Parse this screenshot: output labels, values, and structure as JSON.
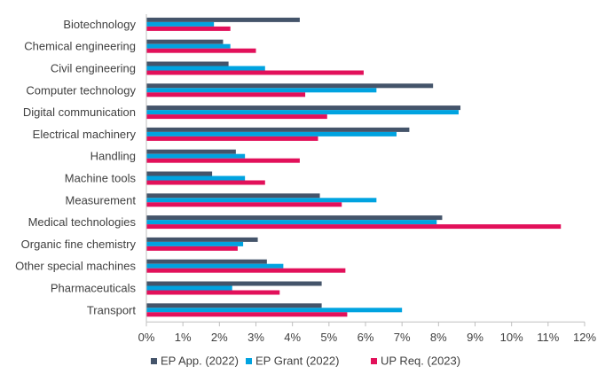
{
  "chart_data": {
    "type": "bar",
    "orientation": "horizontal",
    "title": "",
    "xlabel": "",
    "ylabel": "",
    "xlim": [
      0,
      12
    ],
    "x_tick_labels": [
      "0%",
      "1%",
      "2%",
      "3%",
      "4%",
      "5%",
      "6%",
      "7%",
      "8%",
      "9%",
      "10%",
      "11%",
      "12%"
    ],
    "grid": false,
    "legend_position": "bottom",
    "categories": [
      "Biotechnology",
      "Chemical engineering",
      "Civil engineering",
      "Computer technology",
      "Digital communication",
      "Electrical machinery",
      "Handling",
      "Machine tools",
      "Measurement",
      "Medical technologies",
      "Organic fine chemistry",
      "Other special machines",
      "Pharmaceuticals",
      "Transport"
    ],
    "series": [
      {
        "name": "EP App. (2022)",
        "color": "#44546a",
        "values": [
          4.2,
          2.1,
          2.25,
          7.85,
          8.6,
          7.2,
          2.45,
          1.8,
          4.75,
          8.1,
          3.05,
          3.3,
          4.8,
          4.8
        ]
      },
      {
        "name": "EP Grant (2022)",
        "color": "#00a3e0",
        "values": [
          1.85,
          2.3,
          3.25,
          6.3,
          8.55,
          6.85,
          2.7,
          2.7,
          6.3,
          7.95,
          2.65,
          3.75,
          2.35,
          7.0
        ]
      },
      {
        "name": "UP Req. (2023)",
        "color": "#e2105a",
        "values": [
          2.3,
          3.0,
          5.95,
          4.35,
          4.95,
          4.7,
          4.2,
          3.25,
          5.35,
          11.35,
          2.5,
          5.45,
          3.65,
          5.5
        ]
      }
    ]
  }
}
